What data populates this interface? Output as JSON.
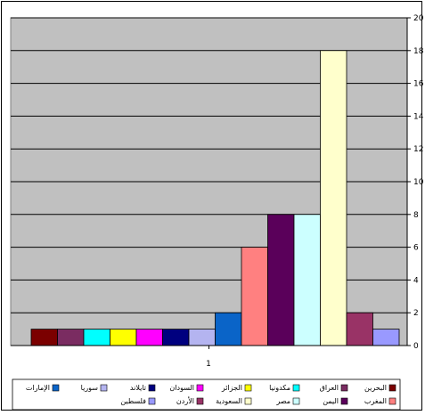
{
  "chart_data": {
    "type": "bar",
    "title": "",
    "xlabel": "",
    "ylabel": "",
    "categories": [
      "1"
    ],
    "ylim": [
      0,
      20
    ],
    "yticks": [
      0,
      2,
      4,
      6,
      8,
      10,
      12,
      14,
      16,
      18,
      20
    ],
    "grid": true,
    "plot_background": "#c0c0c0",
    "legend_position": "bottom",
    "series": [
      {
        "name": "البحرين",
        "value": 1,
        "color": "#7b0000"
      },
      {
        "name": "العراق",
        "value": 1,
        "color": "#7a2c61"
      },
      {
        "name": "مكدونيا",
        "value": 1,
        "color": "#00ffff"
      },
      {
        "name": "الجزائر",
        "value": 1,
        "color": "#ffff00"
      },
      {
        "name": "السودان",
        "value": 1,
        "color": "#ff00ff"
      },
      {
        "name": "تايلاند",
        "value": 1,
        "color": "#00007f"
      },
      {
        "name": "سوريا",
        "value": 1,
        "color": "#b4b4f0"
      },
      {
        "name": "الإمارات",
        "value": 2,
        "color": "#0a64c8"
      },
      {
        "name": "المغرب",
        "value": 6,
        "color": "#ff8080"
      },
      {
        "name": "اليمن",
        "value": 8,
        "color": "#5a005a"
      },
      {
        "name": "مصر",
        "value": 8,
        "color": "#ccffff"
      },
      {
        "name": "السعودية",
        "value": 18,
        "color": "#ffffcc"
      },
      {
        "name": "الأردن",
        "value": 2,
        "color": "#993366"
      },
      {
        "name": "فلسطين",
        "value": 1,
        "color": "#9999ff"
      }
    ]
  }
}
